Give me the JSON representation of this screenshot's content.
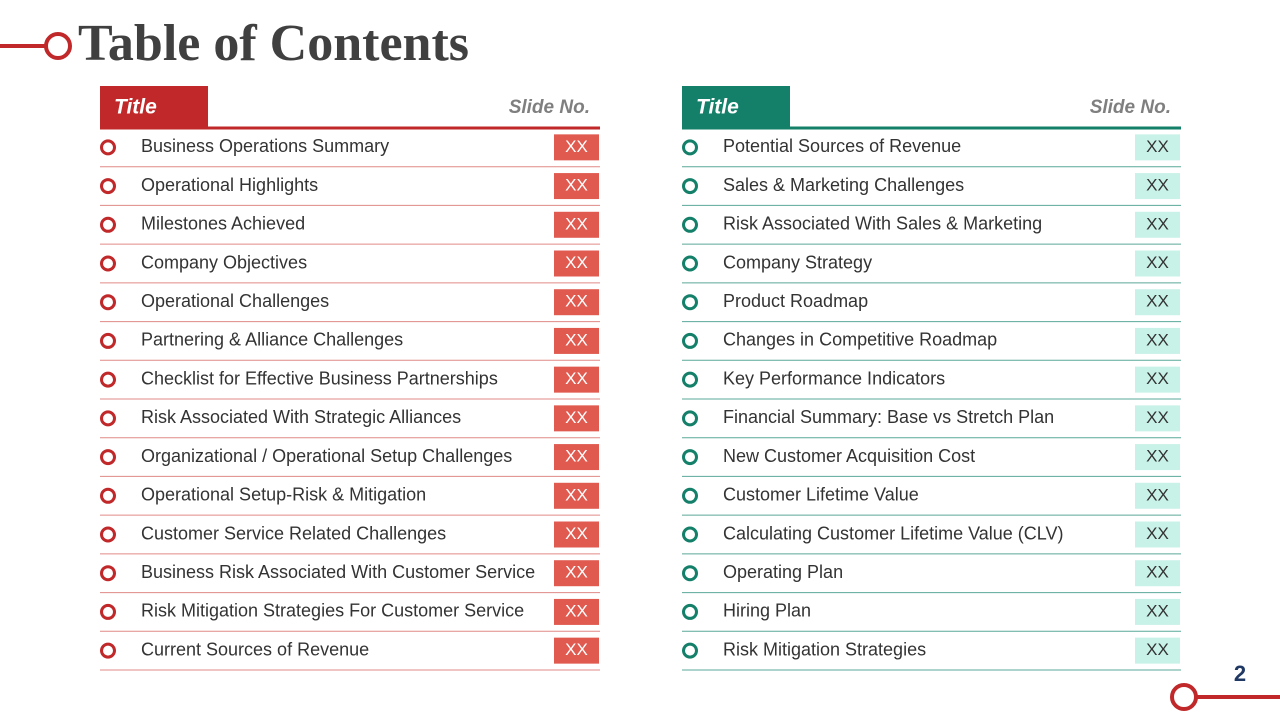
{
  "title": "Table of Contents",
  "left": {
    "header": {
      "title": "Title",
      "slide_no": "Slide No."
    },
    "rows": [
      {
        "label": "Business Operations Summary",
        "slide": "XX"
      },
      {
        "label": "Operational Highlights",
        "slide": "XX"
      },
      {
        "label": "Milestones Achieved",
        "slide": "XX"
      },
      {
        "label": "Company Objectives",
        "slide": "XX"
      },
      {
        "label": "Operational Challenges",
        "slide": "XX"
      },
      {
        "label": "Partnering & Alliance Challenges",
        "slide": "XX"
      },
      {
        "label": "Checklist for Effective Business Partnerships",
        "slide": "XX"
      },
      {
        "label": "Risk Associated With Strategic Alliances",
        "slide": "XX"
      },
      {
        "label": "Organizational / Operational Setup Challenges",
        "slide": "XX"
      },
      {
        "label": "Operational Setup-Risk & Mitigation",
        "slide": "XX"
      },
      {
        "label": "Customer Service Related Challenges",
        "slide": "XX"
      },
      {
        "label": "Business Risk Associated With Customer Service",
        "slide": "XX"
      },
      {
        "label": "Risk Mitigation Strategies For Customer Service",
        "slide": "XX"
      },
      {
        "label": "Current Sources of Revenue",
        "slide": "XX"
      }
    ]
  },
  "right": {
    "header": {
      "title": "Title",
      "slide_no": "Slide No."
    },
    "rows": [
      {
        "label": "Potential Sources of Revenue",
        "slide": "XX"
      },
      {
        "label": "Sales & Marketing Challenges",
        "slide": "XX"
      },
      {
        "label": "Risk Associated With Sales & Marketing",
        "slide": "XX"
      },
      {
        "label": "Company Strategy",
        "slide": "XX"
      },
      {
        "label": "Product Roadmap",
        "slide": "XX"
      },
      {
        "label": "Changes in Competitive Roadmap",
        "slide": "XX"
      },
      {
        "label": "Key Performance Indicators",
        "slide": "XX"
      },
      {
        "label": "Financial Summary: Base vs Stretch Plan",
        "slide": "XX"
      },
      {
        "label": "New Customer Acquisition Cost",
        "slide": "XX"
      },
      {
        "label": "Customer Lifetime Value",
        "slide": "XX"
      },
      {
        "label": "Calculating Customer Lifetime Value (CLV)",
        "slide": "XX"
      },
      {
        "label": "Operating Plan",
        "slide": "XX"
      },
      {
        "label": "Hiring Plan",
        "slide": "XX"
      },
      {
        "label": "Risk Mitigation Strategies",
        "slide": "XX"
      }
    ]
  },
  "page_number": "2"
}
